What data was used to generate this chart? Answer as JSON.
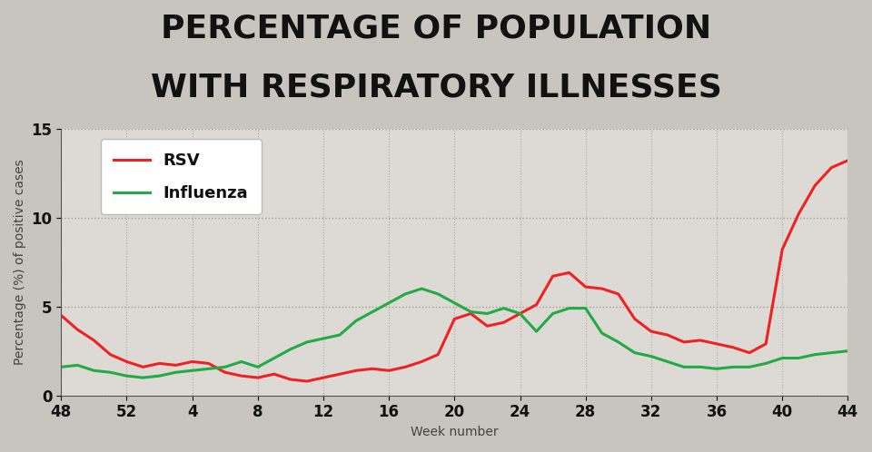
{
  "title_line1": "PERCENTAGE OF POPULATION",
  "title_line2": "WITH RESPIRATORY ILLNESSES",
  "xlabel": "Week number",
  "ylabel": "Percentage (%) of positive cases",
  "ylim": [
    0,
    15
  ],
  "yticks": [
    0,
    5,
    10,
    15
  ],
  "background_color": "#c8c4be",
  "plot_bg_color": "#dddad5",
  "grid_color": "#999999",
  "rsv_color": "#ee2222",
  "flu_color": "#22aa44",
  "rsv_label": "RSV",
  "flu_label": "Influenza",
  "rsv_values": [
    4.5,
    3.7,
    3.1,
    2.3,
    1.9,
    1.6,
    1.8,
    1.7,
    1.9,
    1.8,
    1.3,
    1.1,
    1.0,
    1.2,
    0.9,
    0.8,
    1.0,
    1.2,
    1.4,
    1.5,
    1.4,
    1.6,
    1.9,
    2.3,
    4.3,
    4.6,
    3.9,
    4.1,
    4.6,
    5.1,
    6.7,
    6.9,
    6.1,
    6.0,
    5.7,
    4.3,
    3.6,
    3.4,
    3.0,
    3.1,
    2.9,
    2.7,
    2.4,
    2.9,
    8.2,
    10.2,
    11.8,
    12.8,
    13.2
  ],
  "flu_values": [
    1.6,
    1.7,
    1.4,
    1.3,
    1.1,
    1.0,
    1.1,
    1.3,
    1.4,
    1.5,
    1.6,
    1.9,
    1.6,
    2.1,
    2.6,
    3.0,
    3.2,
    3.4,
    4.2,
    4.7,
    5.2,
    5.7,
    6.0,
    5.7,
    5.2,
    4.7,
    4.6,
    4.9,
    4.6,
    3.6,
    4.6,
    4.9,
    4.9,
    3.5,
    3.0,
    2.4,
    2.2,
    1.9,
    1.6,
    1.6,
    1.5,
    1.6,
    1.6,
    1.8,
    2.1,
    2.1,
    2.3,
    2.4,
    2.5
  ],
  "xtick_positions": [
    0,
    4,
    8,
    12,
    16,
    20,
    24,
    28,
    32,
    36,
    40,
    44,
    48
  ],
  "xtick_labels": [
    "48",
    "52",
    "4",
    "8",
    "12",
    "16",
    "20",
    "24",
    "28",
    "32",
    "36",
    "40",
    "44"
  ],
  "title_fontsize": 26,
  "axis_label_fontsize": 10,
  "tick_fontsize": 12,
  "legend_fontsize": 13,
  "line_width": 2.2
}
